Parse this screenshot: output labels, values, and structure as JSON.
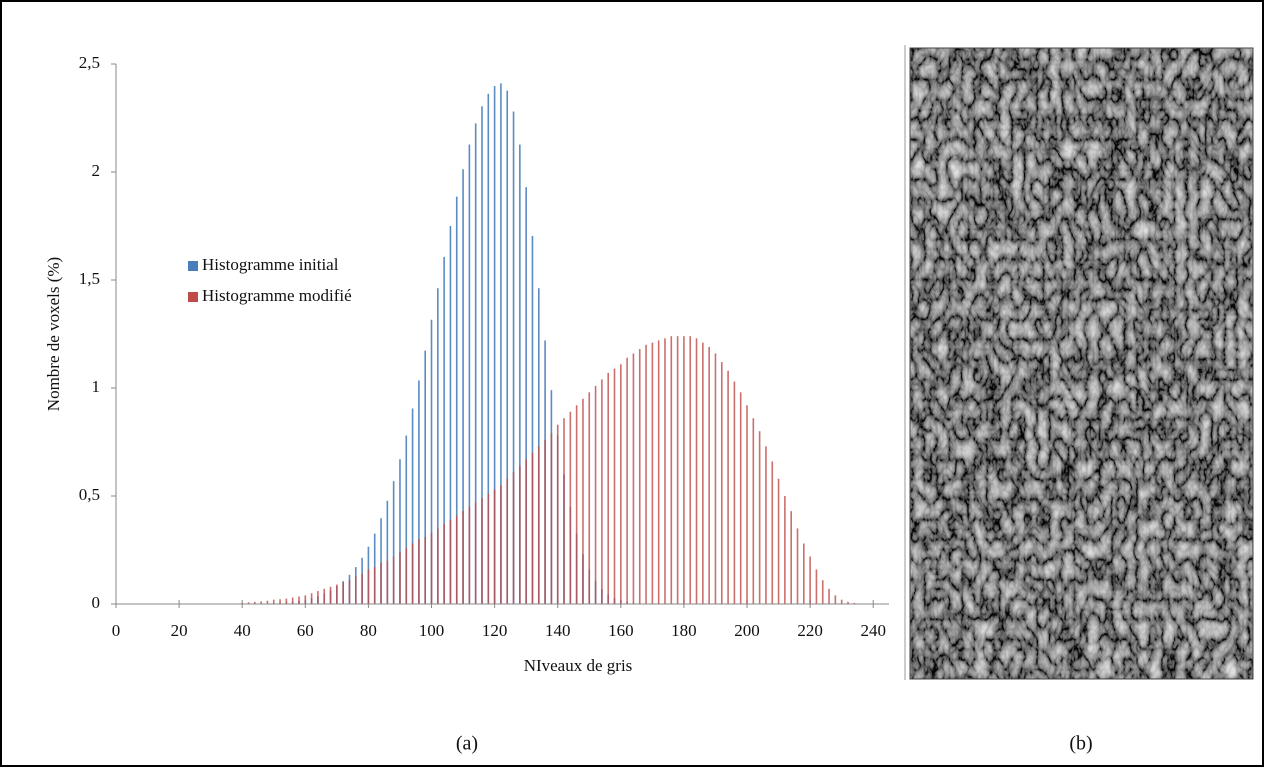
{
  "chart_data": {
    "type": "bar",
    "x_label": "NIveaux de gris",
    "y_label": "Nombre de voxels (%)",
    "x": [
      40,
      42,
      44,
      46,
      48,
      50,
      52,
      54,
      56,
      58,
      60,
      62,
      64,
      66,
      68,
      70,
      72,
      74,
      76,
      78,
      80,
      82,
      84,
      86,
      88,
      90,
      92,
      94,
      96,
      98,
      100,
      102,
      104,
      106,
      108,
      110,
      112,
      114,
      116,
      118,
      120,
      122,
      124,
      126,
      128,
      130,
      132,
      134,
      136,
      138,
      140,
      142,
      144,
      146,
      148,
      150,
      152,
      154,
      156,
      158,
      160,
      162,
      164,
      166,
      168,
      170,
      172,
      174,
      176,
      178,
      180,
      182,
      184,
      186,
      188,
      190,
      192,
      194,
      196,
      198,
      200,
      202,
      204,
      206,
      208,
      210,
      212,
      214,
      216,
      218,
      220,
      222,
      224,
      226,
      228,
      230,
      232,
      234,
      236,
      238,
      240
    ],
    "series": [
      {
        "name": "Histogramme initial",
        "color": "#4a7ebb",
        "values": [
          0.0005,
          0.0008,
          0.0012,
          0.0018,
          0.0026,
          0.0037,
          0.0053,
          0.0075,
          0.0104,
          0.0144,
          0.0198,
          0.027,
          0.036,
          0.048,
          0.063,
          0.082,
          0.106,
          0.135,
          0.171,
          0.214,
          0.265,
          0.326,
          0.397,
          0.478,
          0.569,
          0.67,
          0.78,
          0.905,
          1.035,
          1.173,
          1.316,
          1.462,
          1.607,
          1.75,
          1.886,
          2.013,
          2.127,
          2.225,
          2.304,
          2.362,
          2.398,
          2.41,
          2.377,
          2.28,
          2.127,
          1.93,
          1.704,
          1.462,
          1.22,
          0.99,
          0.78,
          0.6,
          0.449,
          0.326,
          0.23,
          0.159,
          0.106,
          0.069,
          0.044,
          0.027,
          0.016,
          0.009,
          0.005,
          0.003,
          0.0015,
          0.0008,
          0,
          0,
          0,
          0,
          0,
          0,
          0,
          0,
          0,
          0,
          0,
          0,
          0,
          0,
          0,
          0,
          0,
          0,
          0,
          0,
          0,
          0,
          0,
          0,
          0,
          0,
          0,
          0,
          0,
          0,
          0,
          0,
          0,
          0,
          0
        ]
      },
      {
        "name": "Histogramme modifié",
        "color": "#be4b48",
        "values": [
          0.005,
          0.008,
          0.01,
          0.012,
          0.015,
          0.02,
          0.022,
          0.025,
          0.03,
          0.035,
          0.04,
          0.05,
          0.06,
          0.07,
          0.08,
          0.09,
          0.1,
          0.11,
          0.13,
          0.14,
          0.16,
          0.17,
          0.19,
          0.2,
          0.22,
          0.24,
          0.26,
          0.28,
          0.3,
          0.31,
          0.33,
          0.35,
          0.37,
          0.39,
          0.41,
          0.43,
          0.45,
          0.47,
          0.49,
          0.51,
          0.53,
          0.55,
          0.58,
          0.61,
          0.64,
          0.67,
          0.7,
          0.73,
          0.76,
          0.79,
          0.83,
          0.86,
          0.89,
          0.92,
          0.95,
          0.98,
          1.01,
          1.04,
          1.07,
          1.09,
          1.11,
          1.14,
          1.16,
          1.18,
          1.2,
          1.21,
          1.22,
          1.23,
          1.24,
          1.24,
          1.24,
          1.24,
          1.23,
          1.21,
          1.19,
          1.16,
          1.12,
          1.08,
          1.03,
          0.98,
          0.92,
          0.86,
          0.8,
          0.73,
          0.66,
          0.58,
          0.5,
          0.43,
          0.35,
          0.28,
          0.22,
          0.16,
          0.11,
          0.07,
          0.04,
          0.02,
          0.01,
          0.005,
          0.002,
          0,
          0
        ]
      }
    ],
    "xlim": [
      0,
      245
    ],
    "xticks": [
      0,
      20,
      40,
      60,
      80,
      100,
      120,
      140,
      160,
      180,
      200,
      220,
      240
    ],
    "ylim": [
      0,
      2.5
    ],
    "yticks": [
      0,
      {
        "value": 0.5,
        "label": "0,5"
      },
      1,
      {
        "value": 1.5,
        "label": "1,5"
      },
      2,
      {
        "value": 2.5,
        "label": "2,5"
      }
    ],
    "grid": false,
    "legend": "center-left"
  },
  "captions": [
    "(a)",
    "(b)"
  ]
}
